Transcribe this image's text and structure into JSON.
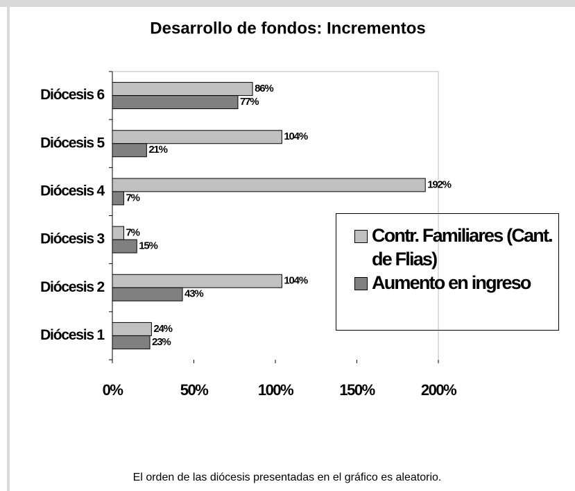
{
  "chart_data": {
    "type": "hbar",
    "title": "Desarrollo de fondos: Incrementos",
    "categories": [
      "Diócesis 1",
      "Diócesis 2",
      "Diócesis 3",
      "Diócesis 4",
      "Diócesis 5",
      "Diócesis 6"
    ],
    "series": [
      {
        "name": "Contr. Familiares (Cant. de Flias)",
        "color": "#c0c0c0",
        "values": [
          24,
          104,
          7,
          192,
          104,
          86
        ],
        "value_labels": [
          "24%",
          "104%",
          "7%",
          "192%",
          "104%",
          "86%"
        ]
      },
      {
        "name": "Aumento en ingreso",
        "color": "#808080",
        "values": [
          23,
          43,
          15,
          7,
          21,
          77
        ],
        "value_labels": [
          "23%",
          "43%",
          "15%",
          "7%",
          "21%",
          "77%"
        ]
      }
    ],
    "xlim": [
      0,
      200
    ],
    "xticks": [
      {
        "value": 0,
        "label": "0%"
      },
      {
        "value": 50,
        "label": "50%"
      },
      {
        "value": 100,
        "label": "100%"
      },
      {
        "value": 150,
        "label": "150%"
      },
      {
        "value": 200,
        "label": "200%"
      }
    ],
    "legend": "right",
    "note": "El orden de las diócesis presentadas en el gráfico es aleatorio."
  }
}
